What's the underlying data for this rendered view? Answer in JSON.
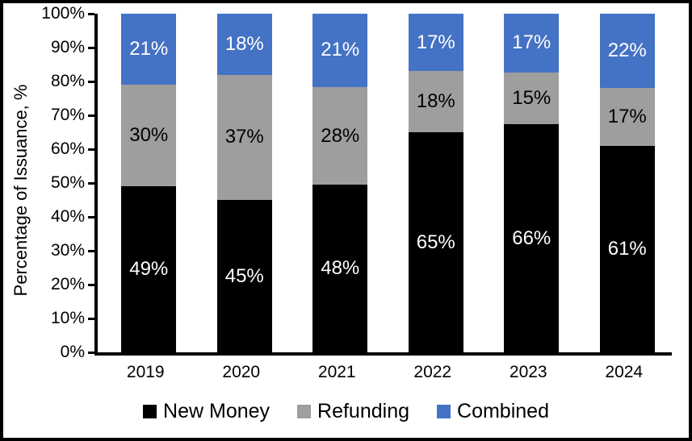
{
  "chart_data": {
    "type": "bar",
    "stacked": true,
    "title": "",
    "xlabel": "",
    "ylabel": "Percentage of Issuance, %",
    "categories": [
      "2019",
      "2020",
      "2021",
      "2022",
      "2023",
      "2024"
    ],
    "series": [
      {
        "name": "New Money",
        "color": "#000000",
        "label_color": "#ffffff",
        "values": [
          49,
          45,
          48,
          65,
          66,
          61
        ]
      },
      {
        "name": "Refunding",
        "color": "#9e9e9e",
        "label_color": "#000000",
        "values": [
          30,
          37,
          28,
          18,
          15,
          17
        ]
      },
      {
        "name": "Combined",
        "color": "#4472c4",
        "label_color": "#ffffff",
        "values": [
          21,
          18,
          21,
          17,
          17,
          22
        ]
      }
    ],
    "value_suffix": "%",
    "ylim": [
      0,
      100
    ],
    "ytick_step": 10,
    "ytick_suffix": "%",
    "grid": false,
    "legend_position": "bottom"
  }
}
